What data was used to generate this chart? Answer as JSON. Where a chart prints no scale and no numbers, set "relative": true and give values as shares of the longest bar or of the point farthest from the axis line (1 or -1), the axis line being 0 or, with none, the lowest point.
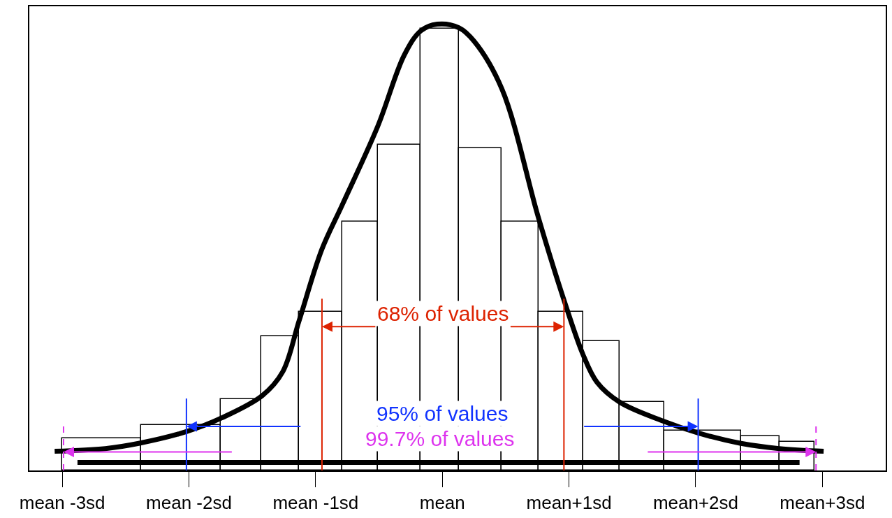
{
  "chart_data": {
    "type": "histogram",
    "relative": true,
    "tick_labels": "x",
    "color": "#000000",
    "bins": [
      -3.0,
      -2.38,
      -1.75,
      -1.43,
      -1.13,
      -0.79,
      -0.51,
      -0.17,
      0.13,
      0.47,
      0.76,
      1.11,
      1.4,
      1.75,
      2.36,
      2.66,
      2.94
    ],
    "values": [
      0.072,
      0.102,
      0.16,
      0.3,
      0.356,
      0.557,
      0.73,
      0.99,
      0.722,
      0.557,
      0.356,
      0.29,
      0.153,
      0.089,
      0.076,
      0.064
    ],
    "xlim": [
      -3.26,
      3.5
    ],
    "xticks": [
      {
        "value": -3,
        "label": "mean -3sd"
      },
      {
        "value": -2,
        "label": "mean -2sd"
      },
      {
        "value": -1,
        "label": "mean -1sd"
      },
      {
        "value": 0,
        "label": "mean"
      },
      {
        "value": 1,
        "label": "mean+1sd"
      },
      {
        "value": 2,
        "label": "mean+2sd"
      },
      {
        "value": 3,
        "label": "mean+3sd"
      }
    ],
    "series": [
      {
        "type": "line",
        "color": "#000000",
        "x": [
          -3.06,
          -2.66,
          -2.39,
          -2.02,
          -1.74,
          -1.42,
          -1.26,
          -1.13,
          -0.95,
          -0.79,
          -0.51,
          -0.3,
          -0.17,
          -0.04,
          0.13,
          0.25,
          0.47,
          0.76,
          0.96,
          1.11,
          1.22,
          1.4,
          1.73,
          2.02,
          2.35,
          2.66,
          3.01
        ],
        "values": [
          0.043,
          0.049,
          0.061,
          0.087,
          0.118,
          0.168,
          0.221,
          0.336,
          0.496,
          0.595,
          0.771,
          0.931,
          0.985,
          1.0,
          0.992,
          0.962,
          0.855,
          0.565,
          0.382,
          0.26,
          0.198,
          0.153,
          0.112,
          0.084,
          0.061,
          0.049,
          0.043
        ]
      },
      {
        "type": "line",
        "color": "#000000",
        "x": [
          -2.88,
          2.82
        ],
        "values": [
          0.018,
          0.018
        ]
      }
    ],
    "ref_lines": [
      {
        "axis": "x",
        "value": -0.95,
        "color": "#dd2200",
        "line_style": "solid"
      },
      {
        "axis": "x",
        "value": 0.96,
        "color": "#dd2200",
        "line_style": "solid"
      },
      {
        "axis": "x",
        "value": -2.02,
        "color": "#1133ff",
        "line_style": "solid"
      },
      {
        "axis": "x",
        "value": 2.02,
        "color": "#1133ff",
        "line_style": "solid"
      },
      {
        "axis": "x",
        "value": -2.99,
        "color": "#dd33ee",
        "line_style": "dashed"
      },
      {
        "axis": "x",
        "value": 2.95,
        "color": "#dd33ee",
        "line_style": "dashed"
      }
    ],
    "annotations": [
      "68% of values",
      "95% of values",
      "99.7% of values"
    ]
  }
}
